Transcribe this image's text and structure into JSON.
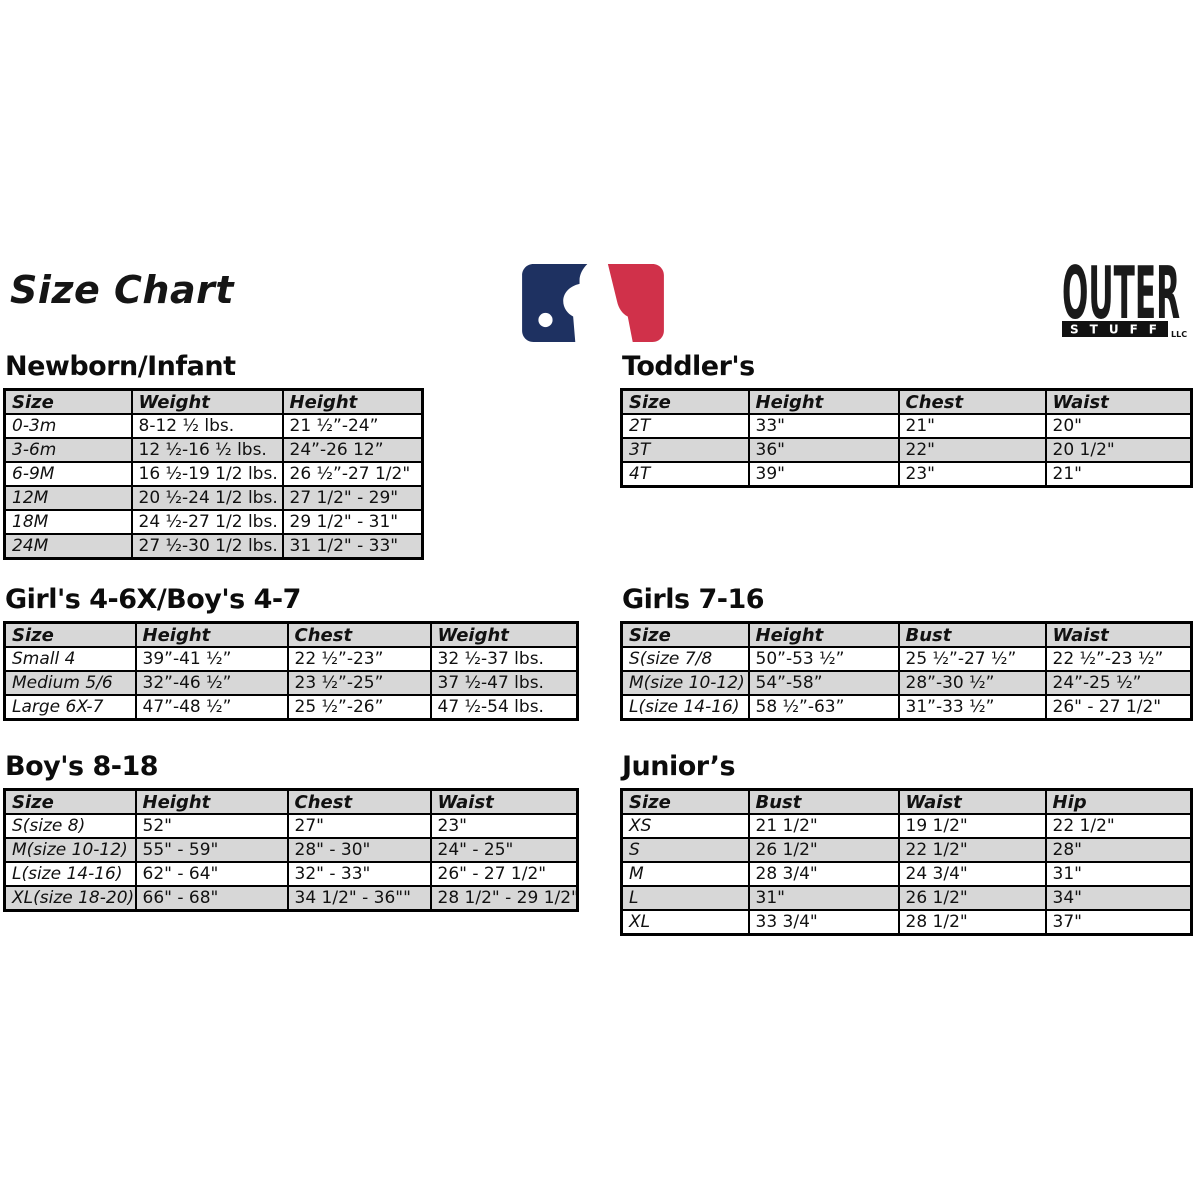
{
  "title": "Size Chart",
  "logos": {
    "mlb": {
      "name": "MLB logo",
      "navy": "#1e3161",
      "red": "#d0314a"
    },
    "outerstuff": {
      "outer": "OUTER",
      "stuff": "STUFF",
      "llc": "LLC"
    }
  },
  "colors": {
    "row_shade": "#d7d7d7",
    "border": "#000000"
  },
  "tables": [
    {
      "title": "Newborn/Infant",
      "headers": [
        "Size",
        "Weight",
        "Height"
      ],
      "rows": [
        [
          "0-3m",
          "8-12 ½ lbs.",
          "21 ½”-24”"
        ],
        [
          "3-6m",
          "12 ½-16 ½ lbs.",
          "24”-26 12”"
        ],
        [
          "6-9M",
          "16 ½-19 1/2 lbs.",
          "26 ½”-27 1/2\""
        ],
        [
          "12M",
          "20 ½-24 1/2 lbs.",
          "27 1/2\" - 29\""
        ],
        [
          "18M",
          "24 ½-27 1/2 lbs.",
          "29 1/2\" - 31\""
        ],
        [
          "24M",
          "27 ½-30 1/2 lbs.",
          "31 1/2\" - 33\""
        ]
      ]
    },
    {
      "title": "Toddler's",
      "headers": [
        "Size",
        "Height",
        "Chest",
        "Waist"
      ],
      "rows": [
        [
          "2T",
          "33\"",
          "21\"",
          "20\""
        ],
        [
          "3T",
          "36\"",
          "22\"",
          "20 1/2\""
        ],
        [
          "4T",
          "39\"",
          "23\"",
          "21\""
        ]
      ]
    },
    {
      "title": "Girl's 4-6X/Boy's 4-7",
      "headers": [
        "Size",
        "Height",
        "Chest",
        "Weight"
      ],
      "rows": [
        [
          "Small 4",
          "39”-41 ½”",
          "22 ½”-23”",
          "32 ½-37 lbs."
        ],
        [
          "Medium 5/6",
          "32”-46 ½”",
          "23 ½”-25”",
          "37 ½-47 lbs."
        ],
        [
          "Large 6X-7",
          "47”-48 ½”",
          "25 ½”-26”",
          "47 ½-54 lbs."
        ]
      ]
    },
    {
      "title": "Girls 7-16",
      "headers": [
        "Size",
        "Height",
        "Bust",
        "Waist"
      ],
      "rows": [
        [
          "S(size 7/8",
          "50”-53 ½”",
          "25 ½”-27 ½”",
          "22 ½”-23 ½”"
        ],
        [
          "M(size 10-12)",
          "54”-58”",
          "28”-30 ½”",
          "24”-25 ½”"
        ],
        [
          "L(size 14-16)",
          "58 ½”-63”",
          "31”-33 ½”",
          "26\" - 27 1/2\""
        ]
      ]
    },
    {
      "title": "Boy's 8-18",
      "headers": [
        "Size",
        "Height",
        "Chest",
        "Waist"
      ],
      "rows": [
        [
          "S(size 8)",
          "52\"",
          "27\"",
          "23\""
        ],
        [
          "M(size 10-12)",
          "55\" - 59\"",
          "28\" - 30\"",
          "24\" - 25\""
        ],
        [
          "L(size 14-16)",
          "62\" - 64\"",
          "32\" - 33\"",
          "26\" - 27 1/2\""
        ],
        [
          "XL(size 18-20)",
          "66\" - 68\"",
          "34 1/2\" - 36\"\"",
          "28 1/2\" - 29 1/2\""
        ]
      ]
    },
    {
      "title": "Junior’s",
      "headers": [
        "Size",
        "Bust",
        "Waist",
        "Hip"
      ],
      "rows": [
        [
          "XS",
          "21 1/2\"",
          "19 1/2\"",
          "22 1/2\""
        ],
        [
          "S",
          "26 1/2\"",
          "22 1/2\"",
          "28\""
        ],
        [
          "M",
          "28 3/4\"",
          "24 3/4\"",
          "31\""
        ],
        [
          "L",
          "31\"",
          "26 1/2\"",
          "34\""
        ],
        [
          "XL",
          "33 3/4\"",
          "28 1/2\"",
          "37\""
        ]
      ]
    }
  ]
}
